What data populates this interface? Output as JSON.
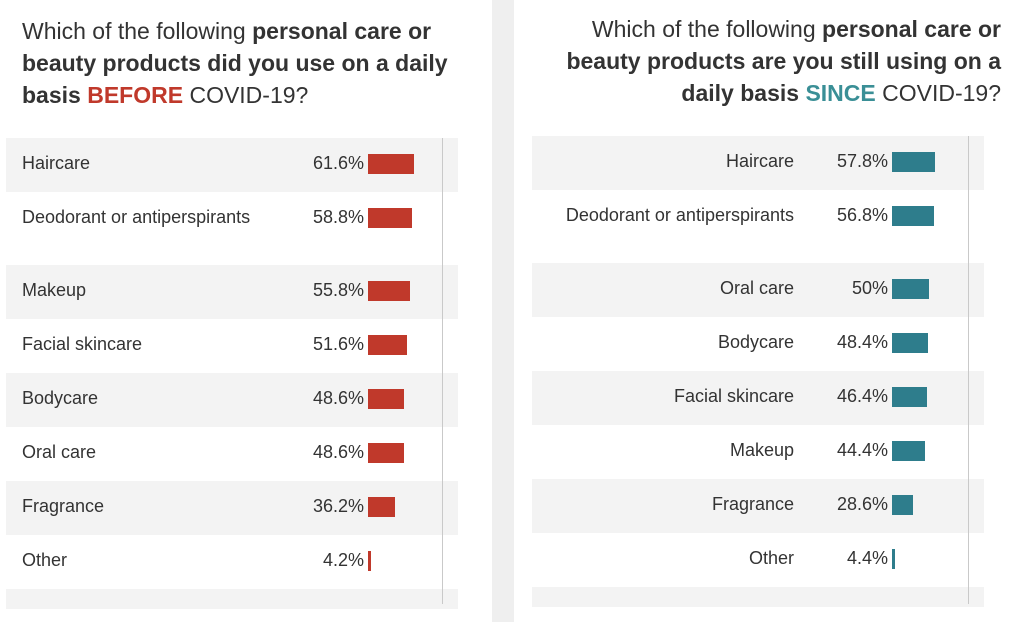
{
  "chart_data": [
    {
      "type": "bar",
      "title_parts": [
        "Which of the following ",
        "personal care or beauty products did you use on a daily basis ",
        "BEFORE",
        " COVID-19?"
      ],
      "title": "Which of the following personal care or beauty products did you use on a daily basis BEFORE COVID-19?",
      "categories": [
        "Haircare",
        "Deodorant or antiperspirants",
        "Makeup",
        "Facial skincare",
        "Bodycare",
        "Oral care",
        "Fragrance",
        "Other"
      ],
      "values": [
        61.6,
        58.8,
        55.8,
        51.6,
        48.6,
        48.6,
        36.2,
        4.2
      ],
      "value_labels": [
        "61.6%",
        "58.8%",
        "55.8%",
        "51.6%",
        "48.6%",
        "48.6%",
        "36.2%",
        "4.2%"
      ],
      "unit": "%",
      "xlim": [
        0,
        100
      ],
      "bar_color": "#c0392b",
      "accent_color": "#c0392b"
    },
    {
      "type": "bar",
      "title_parts": [
        "Which of the following ",
        "personal care or beauty products are you still using on a daily basis ",
        "SINCE",
        " COVID-19?"
      ],
      "title": "Which of the following personal care or beauty products are you still using on a daily basis SINCE COVID-19?",
      "categories": [
        "Haircare",
        "Deodorant or antiperspirants",
        "Oral care",
        "Bodycare",
        "Facial skincare",
        "Makeup",
        "Fragrance",
        "Other"
      ],
      "values": [
        57.8,
        56.8,
        50,
        48.4,
        46.4,
        44.4,
        28.6,
        4.4
      ],
      "value_labels": [
        "57.8%",
        "56.8%",
        "50%",
        "48.4%",
        "46.4%",
        "44.4%",
        "28.6%",
        "4.4%"
      ],
      "unit": "%",
      "xlim": [
        0,
        100
      ],
      "bar_color": "#2e7d8c",
      "accent_color": "#3a8f96"
    }
  ]
}
